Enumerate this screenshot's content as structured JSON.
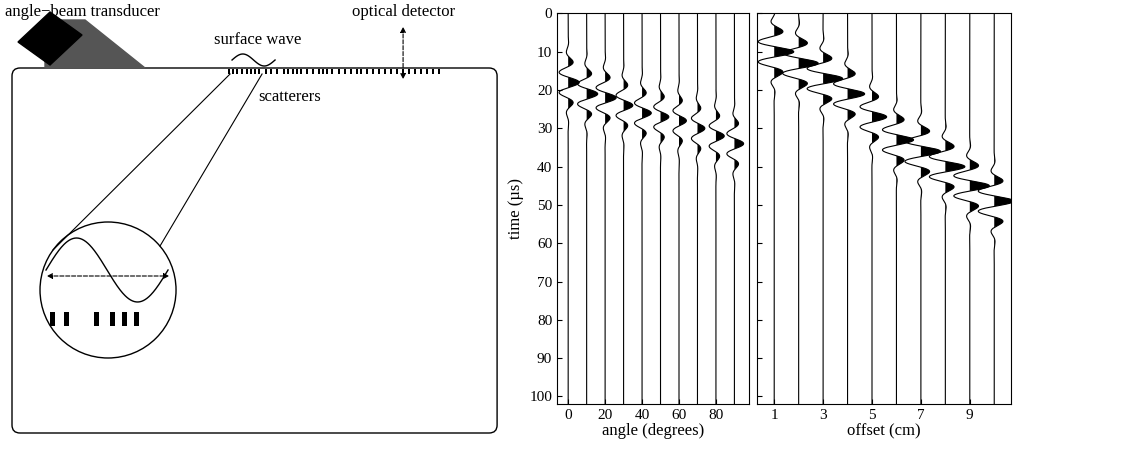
{
  "diagram": {
    "labels": {
      "transducer": "angle−beam transducer",
      "detector": "optical detector",
      "wave": "surface wave",
      "scatterers": "scatterers"
    }
  },
  "chart_data": [
    {
      "type": "wiggle",
      "xlabel": "angle (degrees)",
      "ylabel": "time (µs)",
      "x": [
        0,
        10,
        20,
        30,
        40,
        50,
        60,
        70,
        80,
        90
      ],
      "arrival_times": [
        18,
        21,
        22,
        24,
        26,
        27,
        28,
        30,
        32,
        34
      ],
      "amplitudes": [
        6,
        6,
        6,
        5,
        5,
        4.5,
        4,
        4,
        4.5,
        5
      ],
      "xlim": [
        -6,
        98
      ],
      "xticks": [
        0,
        20,
        40,
        60,
        80
      ],
      "ylim": [
        102,
        0
      ],
      "yticks": [
        0,
        10,
        20,
        30,
        40,
        50,
        60,
        70,
        80,
        90,
        100
      ]
    },
    {
      "type": "wiggle",
      "xlabel": "offset (cm)",
      "x": [
        1,
        2,
        3,
        4,
        5,
        6,
        7,
        8,
        9,
        10
      ],
      "arrival_times": [
        10,
        13,
        17,
        21,
        27,
        33,
        36,
        40,
        45,
        49
      ],
      "amplitudes": [
        0.8,
        0.8,
        0.8,
        0.7,
        0.6,
        0.7,
        0.8,
        0.8,
        0.8,
        0.8
      ],
      "xlim": [
        0.3,
        10.7
      ],
      "xticks": [
        1,
        3,
        5,
        7,
        9
      ],
      "ylim": [
        102,
        0
      ],
      "yticks": [
        0,
        10,
        20,
        30,
        40,
        50,
        60,
        70,
        80,
        90,
        100
      ],
      "tick_labels": "x"
    }
  ]
}
